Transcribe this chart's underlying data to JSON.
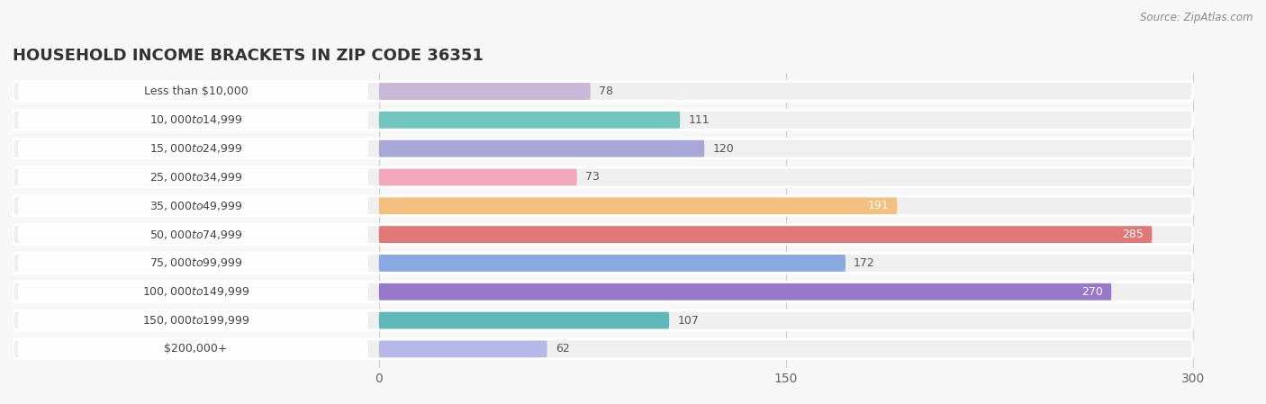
{
  "title": "HOUSEHOLD INCOME BRACKETS IN ZIP CODE 36351",
  "source": "Source: ZipAtlas.com",
  "categories": [
    "Less than $10,000",
    "$10,000 to $14,999",
    "$15,000 to $24,999",
    "$25,000 to $34,999",
    "$35,000 to $49,999",
    "$50,000 to $74,999",
    "$75,000 to $99,999",
    "$100,000 to $149,999",
    "$150,000 to $199,999",
    "$200,000+"
  ],
  "values": [
    78,
    111,
    120,
    73,
    191,
    285,
    172,
    270,
    107,
    62
  ],
  "colors": [
    "#c9b8d8",
    "#70c5bc",
    "#a8a8d8",
    "#f0a8ba",
    "#f4c080",
    "#e07878",
    "#88aae0",
    "#9878c8",
    "#60b8b8",
    "#b8b8e8"
  ],
  "label_colors": [
    "#555555",
    "#555555",
    "#555555",
    "#555555",
    "#ffffff",
    "#ffffff",
    "#555555",
    "#ffffff",
    "#555555",
    "#555555"
  ],
  "data_max": 300,
  "xticks": [
    0,
    150,
    300
  ],
  "background_color": "#f7f7f7",
  "bar_bg_color": "#e8e8e8",
  "row_bg_color": "#efefef",
  "title_fontsize": 13,
  "label_fontsize": 9,
  "value_fontsize": 9
}
